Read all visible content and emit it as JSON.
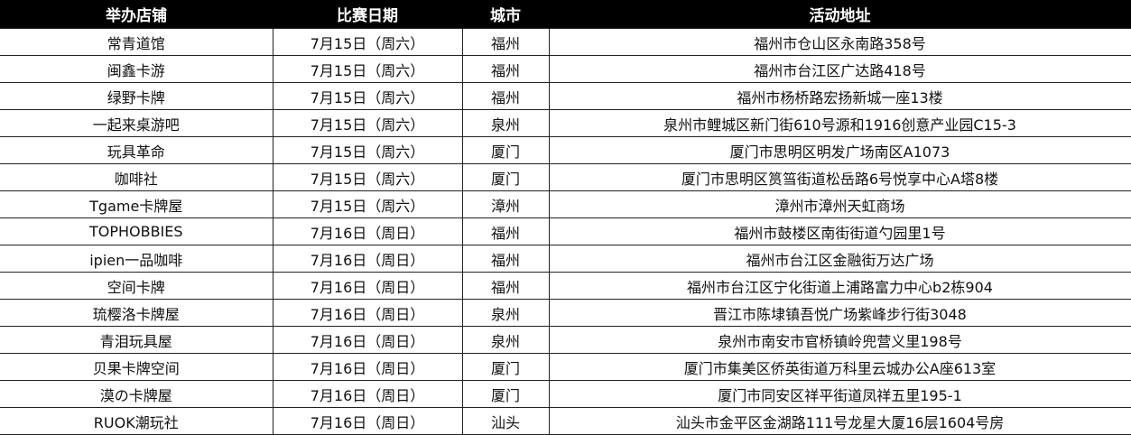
{
  "table": {
    "headers": [
      "举办店铺",
      "比赛日期",
      "城市",
      "活动地址"
    ],
    "rows": [
      [
        "常青道馆",
        "7月15日（周六）",
        "福州",
        "福州市仓山区永南路358号"
      ],
      [
        "闽鑫卡游",
        "7月15日（周六）",
        "福州",
        "福州市台江区广达路418号"
      ],
      [
        "绿野卡牌",
        "7月15日（周六）",
        "福州",
        "福州市杨桥路宏扬新城一座13楼"
      ],
      [
        "一起来桌游吧",
        "7月15日（周六）",
        "泉州",
        "泉州市鲤城区新门街610号源和1916创意产业园C15-3"
      ],
      [
        "玩具革命",
        "7月15日（周六）",
        "厦门",
        "厦门市思明区明发广场南区A1073"
      ],
      [
        "咖啡社",
        "7月15日（周六）",
        "厦门",
        "厦门市思明区筼筜街道松岳路6号悦享中心A塔8楼"
      ],
      [
        "Tgame卡牌屋",
        "7月15日（周六）",
        "漳州",
        "漳州市漳州天虹商场"
      ],
      [
        "TOPHOBBIES",
        "7月16日（周日）",
        "福州",
        "福州市鼓楼区南街街道勺园里1号"
      ],
      [
        "ipien一品咖啡",
        "7月16日（周日）",
        "福州",
        "福州市台江区金融街万达广场"
      ],
      [
        "空间卡牌",
        "7月16日（周日）",
        "福州",
        "福州市台江区宁化街道上浦路富力中心b2栋904"
      ],
      [
        "琉樱洛卡牌屋",
        "7月16日（周日）",
        "泉州",
        "晋江市陈埭镇吾悦广场紫峰步行街3048"
      ],
      [
        "青泪玩具屋",
        "7月16日（周日）",
        "泉州",
        "泉州市南安市官桥镇岭兜营义里198号"
      ],
      [
        "贝果卡牌空间",
        "7月16日（周日）",
        "厦门",
        "厦门市集美区侨英街道万科里云城办公A座613室"
      ],
      [
        "漠の卡牌屋",
        "7月16日（周日）",
        "厦门",
        "厦门市同安区祥平街道凤祥五里195-1"
      ],
      [
        "RUOK潮玩社",
        "7月16日（周日）",
        "汕头",
        "汕头市金平区金湖路111号龙星大厦16层1604号房"
      ]
    ]
  }
}
